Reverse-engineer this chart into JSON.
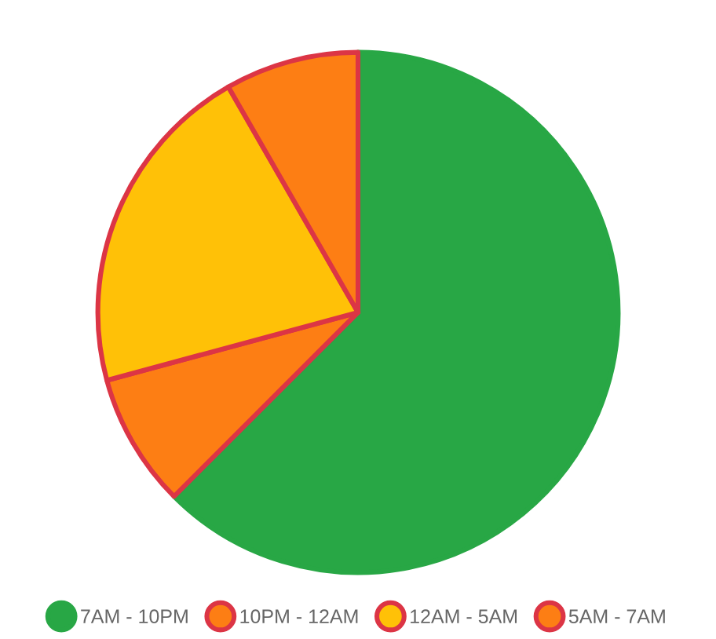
{
  "chart_data": {
    "type": "pie",
    "categories": [
      "7AM - 10PM",
      "10PM - 12AM",
      "12AM - 5AM",
      "5AM - 7AM"
    ],
    "values": [
      62.5,
      8.3,
      20.9,
      8.3
    ],
    "colors": [
      "#28a745",
      "#fd7e14",
      "#ffc107",
      "#fd7e14"
    ],
    "legend": "bottom"
  }
}
